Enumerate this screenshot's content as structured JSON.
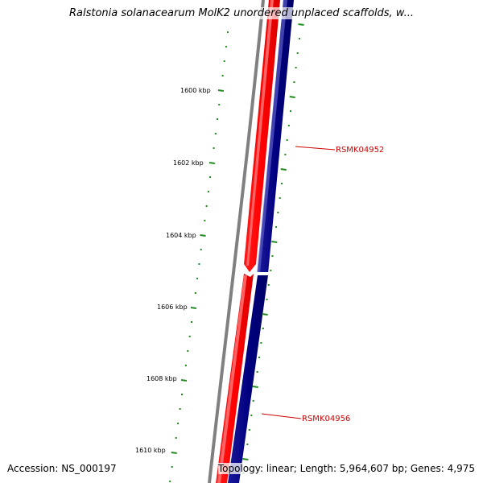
{
  "title": "Ralstonia solanacearum MolK2 unordered unplaced scaffolds, w...",
  "footer": {
    "accession": "Accession: NS_000197",
    "topology": "Topology: linear; Length: 5,964,607 bp; Genes: 4,975"
  },
  "ruler": {
    "major_labels": [
      "1600 kbp",
      "1602 kbp",
      "1604 kbp",
      "1606 kbp",
      "1608 kbp",
      "1610 kbp"
    ]
  },
  "genes": [
    {
      "id": "RSMK04952"
    },
    {
      "id": "RSMK04956"
    }
  ],
  "colors": {
    "forward_strand": "#ff0000",
    "reverse_strand": "#000080",
    "backbone": "#808080",
    "ticks": "#228b22",
    "gene_label": "#cc0000"
  }
}
